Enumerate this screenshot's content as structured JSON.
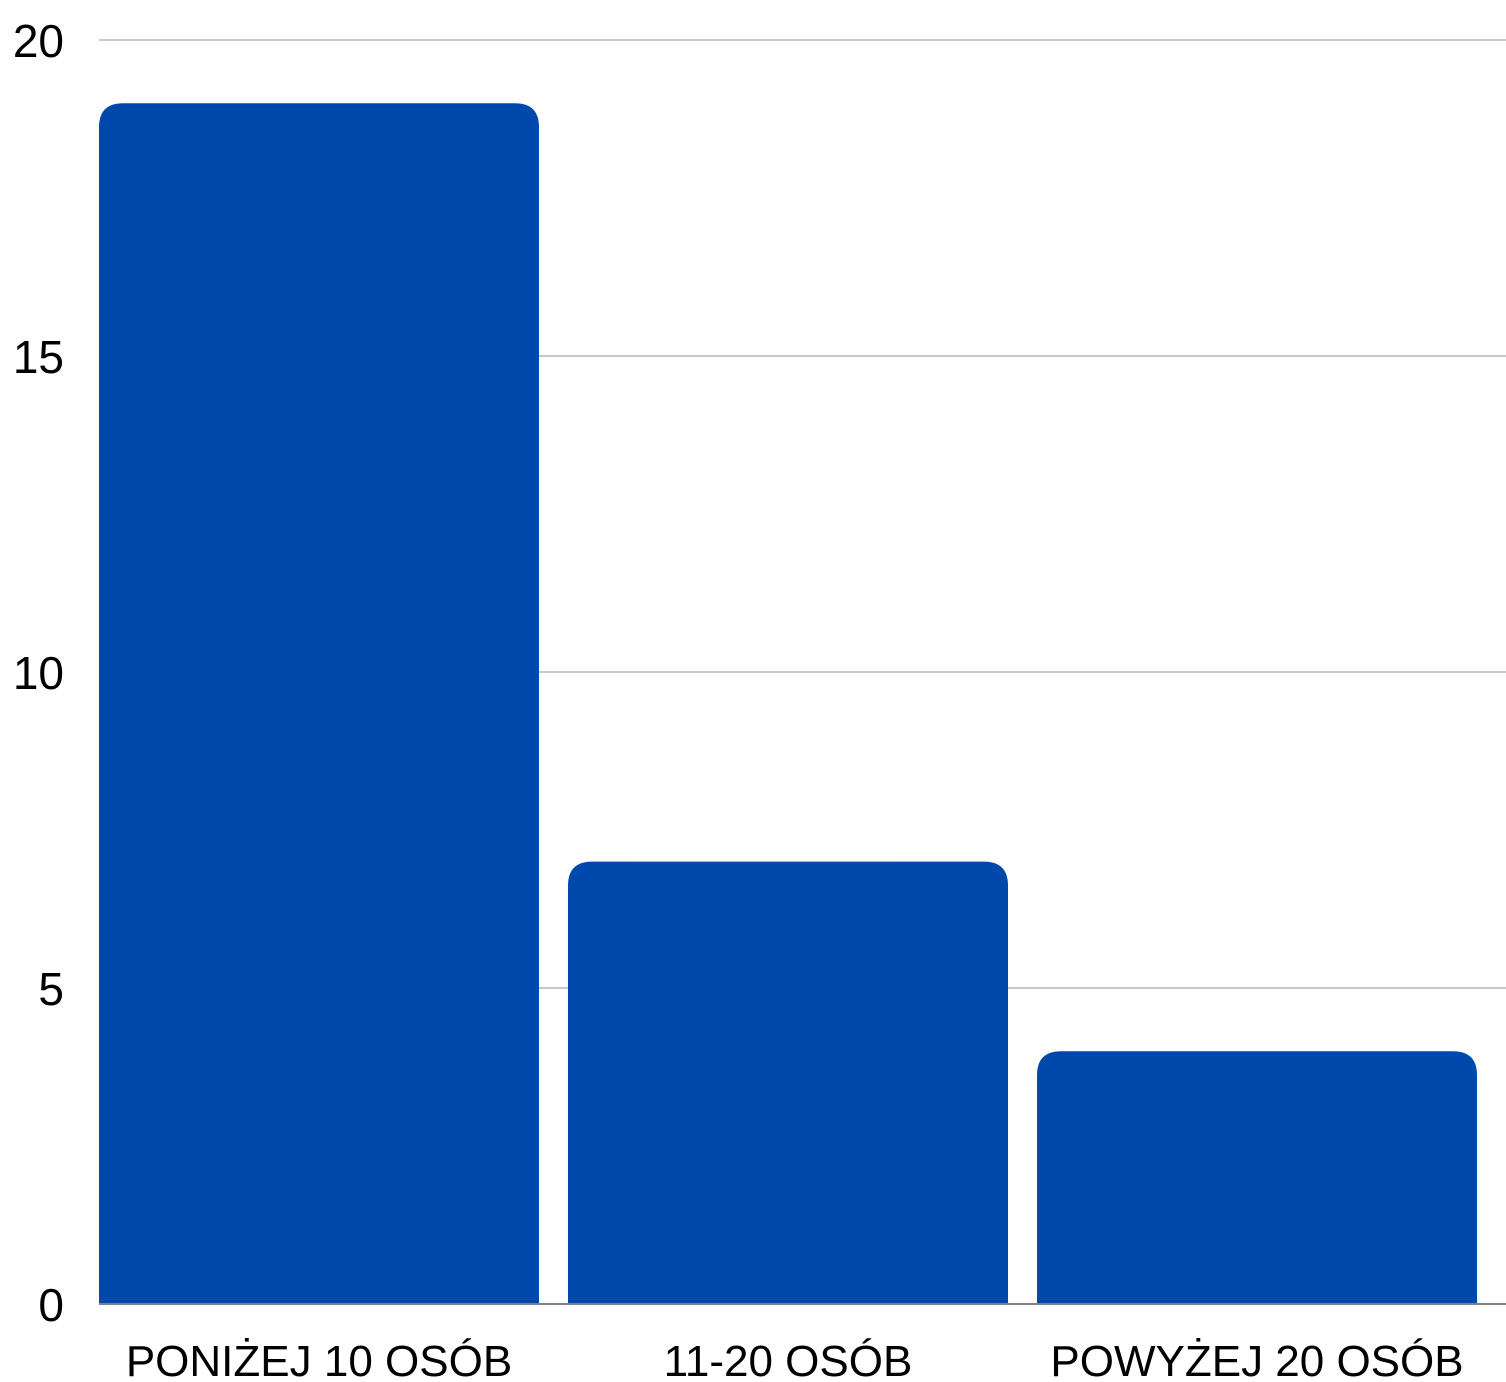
{
  "chart_data": {
    "type": "bar",
    "title": "",
    "xlabel": "",
    "ylabel": "",
    "categories": [
      "PONIŻEJ 10 OSÓB",
      "11-20 OSÓB",
      "POWYŻEJ 20 OSÓB"
    ],
    "values": [
      19,
      7,
      4
    ],
    "ylim": [
      0,
      20
    ],
    "yticks": [
      "0",
      "5",
      "10",
      "15",
      "20"
    ],
    "grid": true,
    "legend": "none",
    "colors": {
      "bar": "#0049AC",
      "grid": "#C8C8C8",
      "axis": "#808080"
    }
  }
}
